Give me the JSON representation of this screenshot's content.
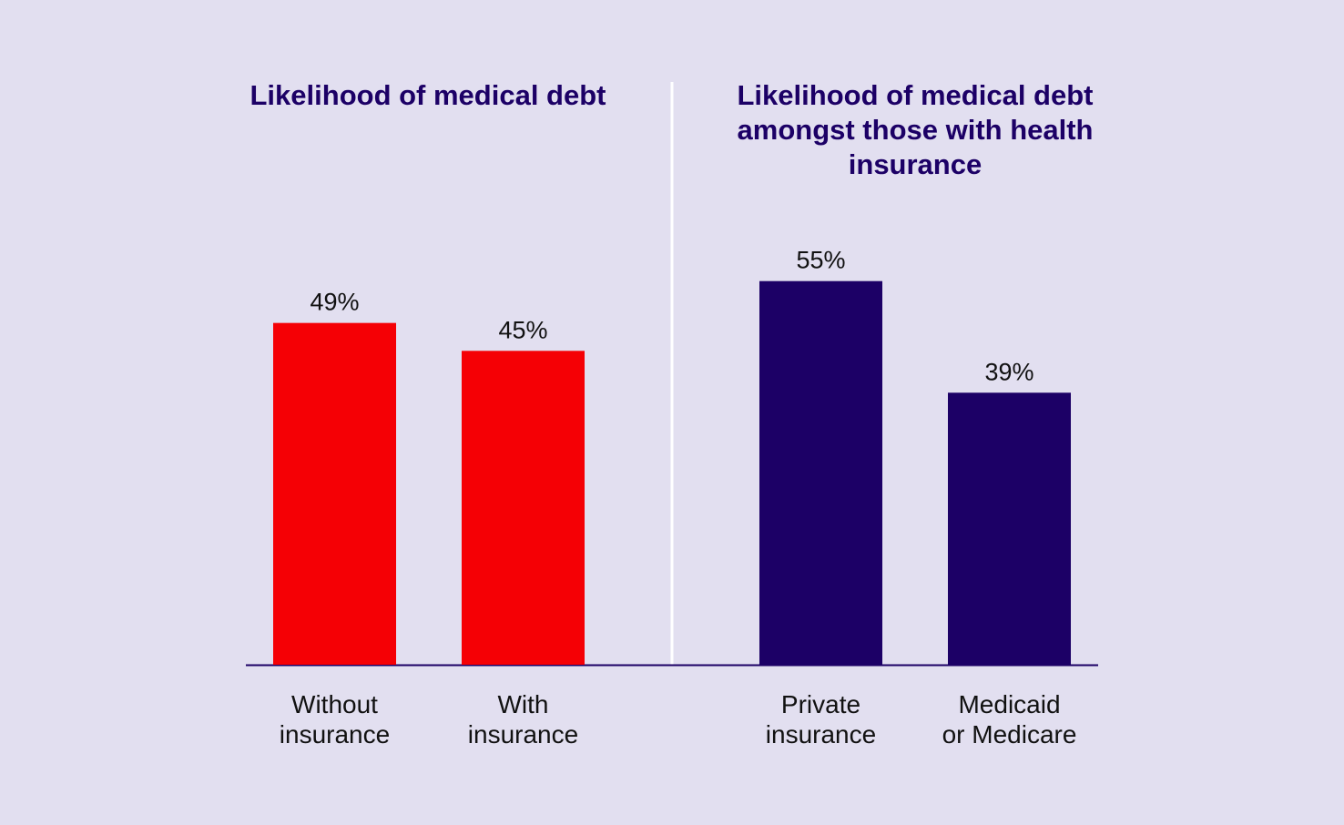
{
  "colors": {
    "background": "#e2dff0",
    "title": "#1c0066",
    "left_bars": "#f50005",
    "right_bars": "#1c0066",
    "divider": "#ffffff",
    "baseline": "#1c0066"
  },
  "chart_data": [
    {
      "type": "bar",
      "title": "Likelihood of medical debt",
      "categories": [
        [
          "Without",
          "insurance"
        ],
        [
          "With",
          "insurance"
        ]
      ],
      "values": [
        49,
        45
      ],
      "value_labels": [
        "49%",
        "45%"
      ],
      "unit": "%",
      "ylim": [
        0,
        100
      ],
      "grid": false,
      "bar_color": "#f50005"
    },
    {
      "type": "bar",
      "title": "Likelihood of medical debt amongst those with health insurance",
      "categories": [
        [
          "Private",
          "insurance"
        ],
        [
          "Medicaid",
          "or Medicare"
        ]
      ],
      "values": [
        55,
        39
      ],
      "value_labels": [
        "55%",
        "39%"
      ],
      "unit": "%",
      "ylim": [
        0,
        100
      ],
      "grid": false,
      "bar_color": "#1c0066"
    }
  ]
}
